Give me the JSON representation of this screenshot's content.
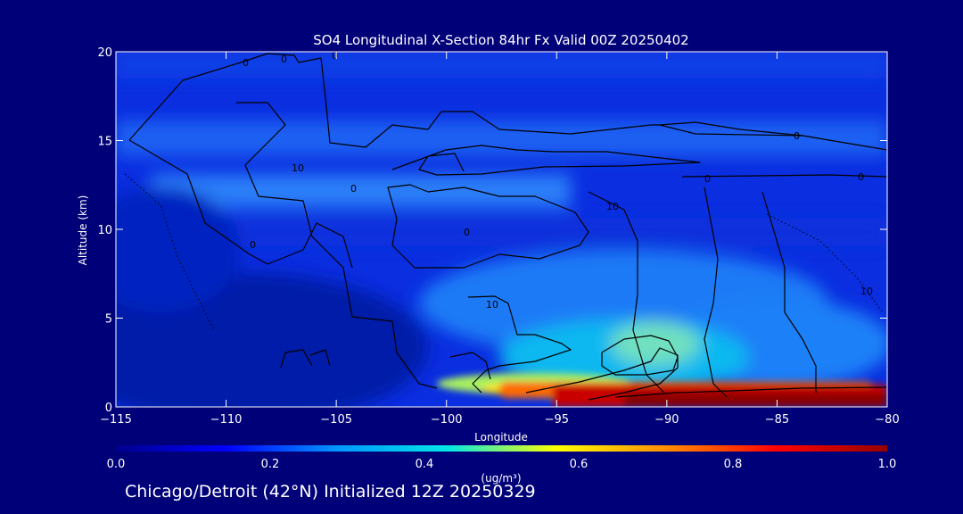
{
  "chart_data": {
    "type": "heatmap",
    "title": "SO4 Longitudinal X-Section 84hr  Fx Valid 00Z 20250402",
    "xlabel": "Longitude",
    "ylabel": "Altitude (km)",
    "xlim": [
      -115,
      -80
    ],
    "ylim": [
      0,
      20
    ],
    "x_ticks": [
      -115,
      -110,
      -105,
      -100,
      -95,
      -90,
      -85,
      -80
    ],
    "x_tick_labels": [
      "−115",
      "−110",
      "−105",
      "−100",
      "−95",
      "−90",
      "−85",
      "−80"
    ],
    "y_ticks": [
      0,
      5,
      10,
      15,
      20
    ],
    "y_tick_labels": [
      "0",
      "5",
      "10",
      "15",
      "20"
    ],
    "colorbar": {
      "min": 0.0,
      "max": 1.0,
      "ticks": [
        0.0,
        0.2,
        0.4,
        0.6,
        0.8,
        1.0
      ],
      "tick_labels": [
        "0.0",
        "0.2",
        "0.4",
        "0.6",
        "0.8",
        "1.0"
      ],
      "units_label": "(ug/m³)",
      "colormap": [
        "#00008c",
        "#0000ff",
        "#0096ff",
        "#00e6e6",
        "#ffff00",
        "#ff8c00",
        "#ff0000",
        "#960000"
      ]
    },
    "contour_labels": [
      "0",
      "0",
      "0",
      "10",
      "0",
      "10",
      "0",
      "0",
      "0",
      "0",
      "10",
      "0",
      "10"
    ],
    "grid": false,
    "legend": "none"
  },
  "footer": {
    "text": "Chicago/Detroit (42°N) Initialized 12Z 20250329"
  },
  "colors": {
    "background": "#000078",
    "text": "#ffffff",
    "contour": "#000000"
  }
}
